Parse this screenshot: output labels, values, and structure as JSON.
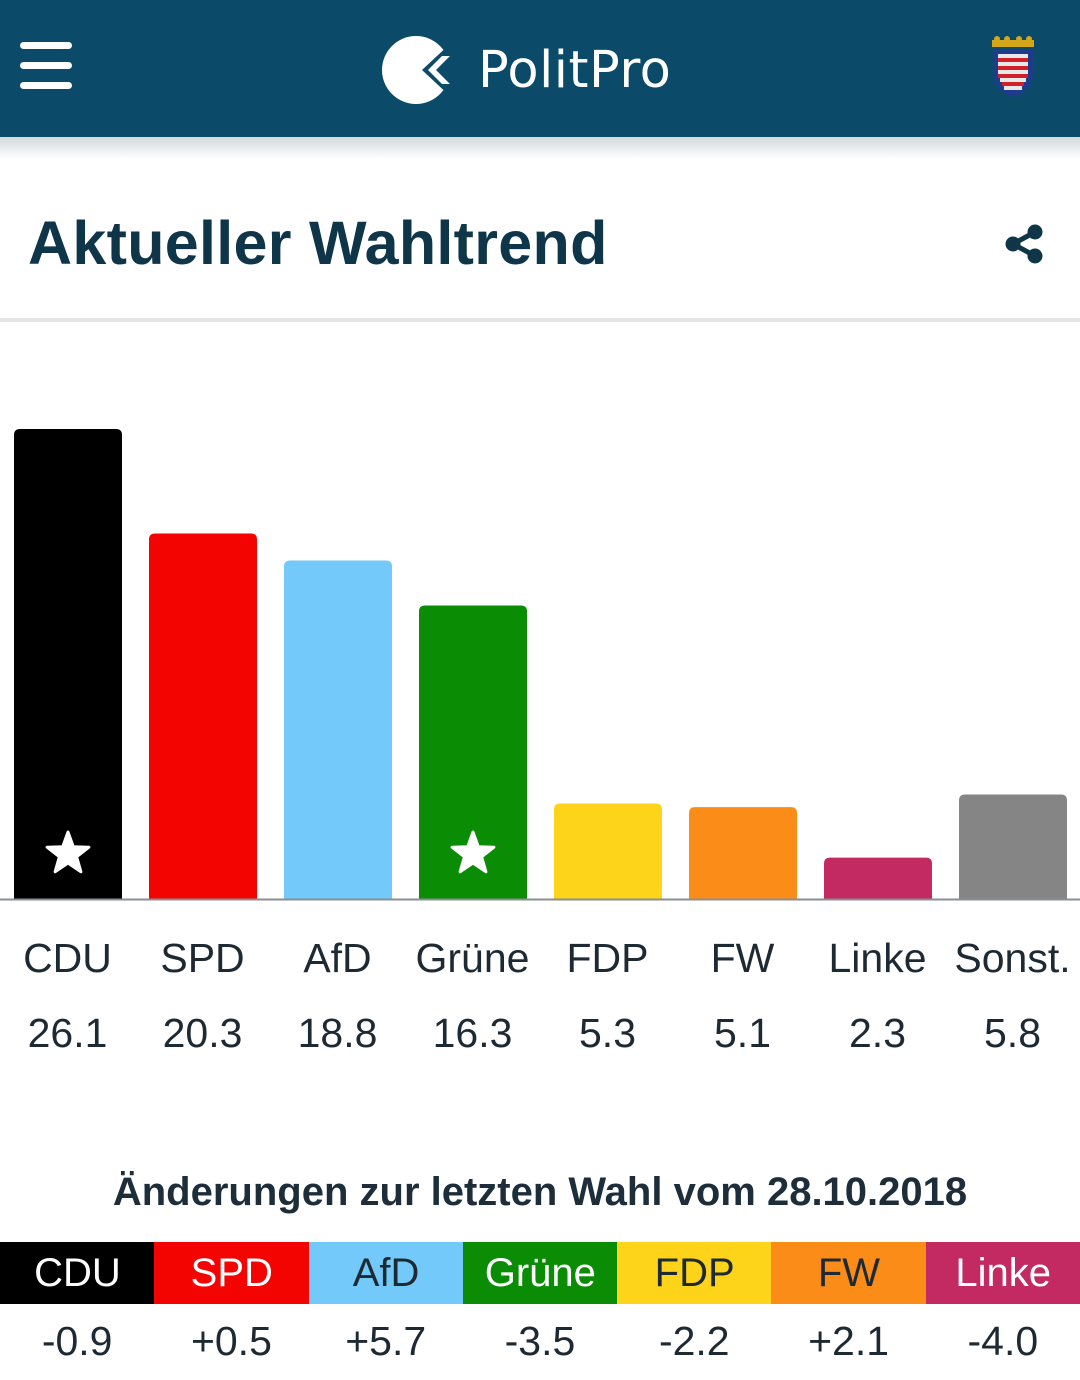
{
  "app": {
    "name": "PolitPro"
  },
  "header": {
    "menu_icon": "hamburger-menu-icon",
    "logo_icon": "politpro-logo-icon",
    "region_icon": "hesse-coat-of-arms-icon",
    "bar_color": "#0b4a68"
  },
  "section": {
    "title": "Aktueller Wahltrend",
    "share_icon": "share-icon"
  },
  "chart_data": {
    "type": "bar",
    "categories": [
      "CDU",
      "SPD",
      "AfD",
      "Grüne",
      "FDP",
      "FW",
      "Linke",
      "Sonst."
    ],
    "values": [
      26.1,
      20.3,
      18.8,
      16.3,
      5.3,
      5.1,
      2.3,
      5.8
    ],
    "value_labels": [
      "26.1",
      "20.3",
      "18.8",
      "16.3",
      "5.3",
      "5.1",
      "2.3",
      "5.8"
    ],
    "colors": [
      "#000000",
      "#f30401",
      "#73c9fa",
      "#0a8c05",
      "#fed41a",
      "#fb8c18",
      "#c42a62",
      "#858585"
    ],
    "starred": [
      true,
      false,
      false,
      true,
      false,
      false,
      false,
      false
    ],
    "ylim": [
      0,
      26.1
    ],
    "grid": false,
    "legend": "none"
  },
  "changes": {
    "title": "Änderungen zur letzten Wahl vom 28.10.2018",
    "parties": [
      {
        "name": "CDU",
        "change": "-0.9",
        "bg": "#000000",
        "fg": "#ffffff"
      },
      {
        "name": "SPD",
        "change": "+0.5",
        "bg": "#f30401",
        "fg": "#ffffff"
      },
      {
        "name": "AfD",
        "change": "+5.7",
        "bg": "#73c9fa",
        "fg": "#1e2a33"
      },
      {
        "name": "Grüne",
        "change": "-3.5",
        "bg": "#0a8c05",
        "fg": "#ffffff"
      },
      {
        "name": "FDP",
        "change": "-2.2",
        "bg": "#fed41a",
        "fg": "#1e2a33"
      },
      {
        "name": "FW",
        "change": "+2.1",
        "bg": "#fb8c18",
        "fg": "#1e2a33"
      },
      {
        "name": "Linke",
        "change": "-4.0",
        "bg": "#c42a62",
        "fg": "#ffffff"
      }
    ]
  }
}
